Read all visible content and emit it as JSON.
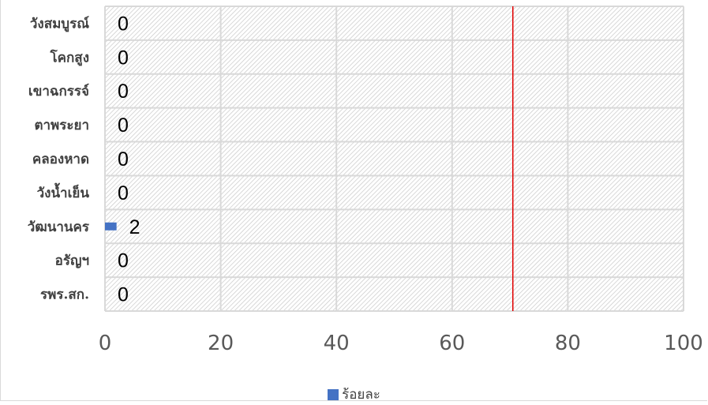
{
  "chart_data": {
    "type": "bar",
    "orientation": "horizontal",
    "categories": [
      "วังสมบูรณ์",
      "โคกสูง",
      "เขาฉกรรจ์",
      "ตาพระยา",
      "คลองหาด",
      "วังน้ำเย็น",
      "วัฒนานคร",
      "อรัญฯ",
      "รพร.สก."
    ],
    "series": [
      {
        "name": "ร้อยละ",
        "values": [
          0,
          0,
          0,
          0,
          0,
          0,
          2,
          0,
          0
        ],
        "color": "#4472c4"
      }
    ],
    "data_labels": [
      "0",
      "0",
      "0",
      "0",
      "0",
      "0",
      "2",
      "0",
      "0"
    ],
    "x_ticks": [
      "0",
      "20",
      "40",
      "60",
      "80",
      "100"
    ],
    "xlim": [
      0,
      100
    ],
    "target_line": {
      "value": 70.5,
      "color": "#e00000"
    },
    "grid": true,
    "plot_background": "hatched",
    "legend_position": "bottom"
  }
}
